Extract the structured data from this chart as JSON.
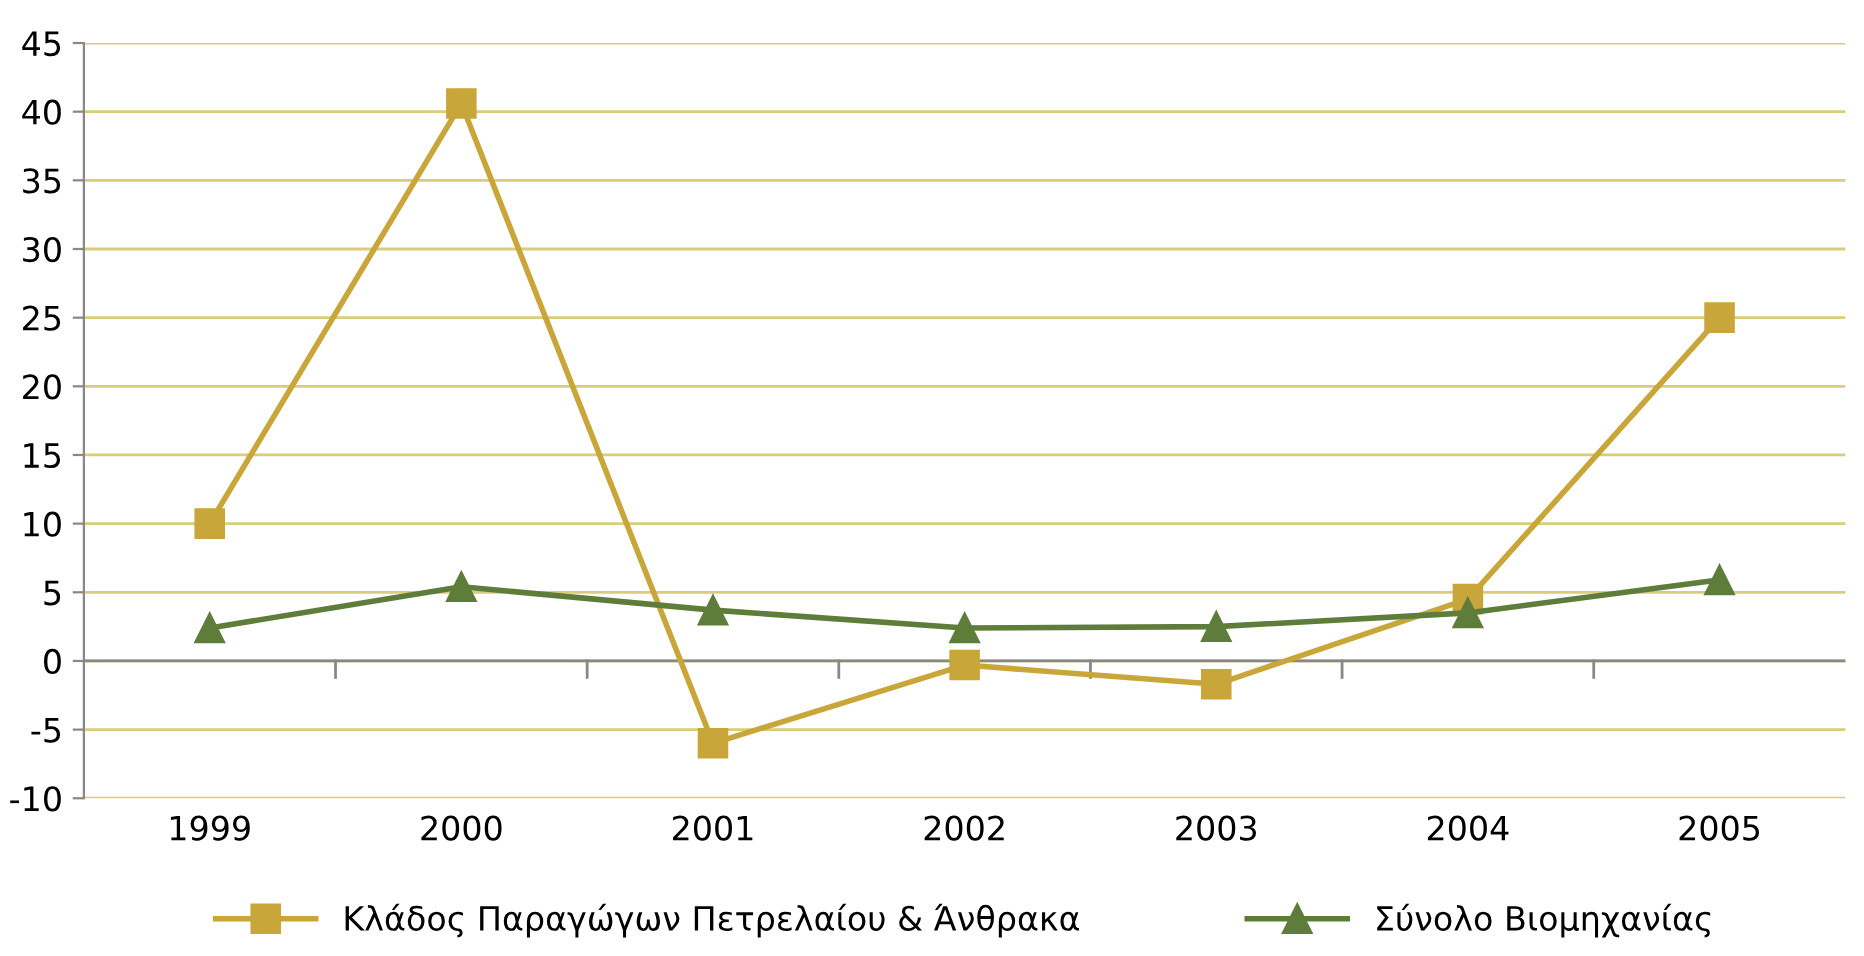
{
  "chart_data": {
    "type": "line",
    "categories": [
      "1999",
      "2000",
      "2001",
      "2002",
      "2003",
      "2004",
      "2005"
    ],
    "series": [
      {
        "name": "Κλάδος Παραγώγων Πετρελαίου & Άνθρακα",
        "color": "#c8a639",
        "marker": "square",
        "values": [
          10,
          40.6,
          -6,
          -0.3,
          -1.7,
          4.5,
          25
        ]
      },
      {
        "name": "Σύνολο Βιομηχανίας",
        "color": "#5e7d3a",
        "marker": "triangle",
        "values": [
          2.4,
          5.4,
          3.7,
          2.4,
          2.5,
          3.5,
          5.9
        ]
      }
    ],
    "ylim": [
      -10,
      45
    ],
    "yticks": [
      -10,
      -5,
      0,
      5,
      10,
      15,
      20,
      25,
      30,
      35,
      40,
      45
    ],
    "grid": "y",
    "legend": "bottom",
    "line_style": "solid"
  }
}
